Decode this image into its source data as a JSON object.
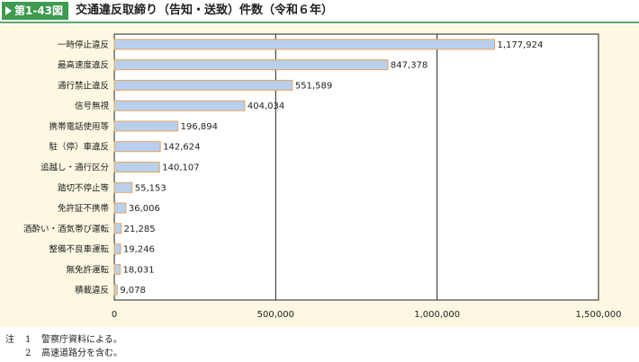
{
  "header": {
    "figure_number": "第1-43図",
    "title": "交通違反取締り（告知・送致）件数（令和６年）"
  },
  "chart_data": {
    "type": "bar",
    "orientation": "horizontal",
    "categories": [
      "一時停止違反",
      "最高速度違反",
      "通行禁止違反",
      "信号無視",
      "携帯電話使用等",
      "駐（停）車違反",
      "追越し・通行区分",
      "踏切不停止等",
      "免許証不携帯",
      "酒酔い・酒気帯び運転",
      "整備不良車運転",
      "無免許運転",
      "積載違反"
    ],
    "values": [
      1177924,
      847378,
      551589,
      404034,
      196894,
      142624,
      140107,
      55153,
      36006,
      21285,
      19246,
      18031,
      9078
    ],
    "value_labels": [
      "1,177,924",
      "847,378",
      "551,589",
      "404,034",
      "196,894",
      "142,624",
      "140,107",
      "55,153",
      "36,006",
      "21,285",
      "19,246",
      "18,031",
      "9,078"
    ],
    "x_ticks": [
      0,
      500000,
      1000000,
      1500000
    ],
    "x_tick_labels": [
      "0",
      "500,000",
      "1,000,000",
      "1,500,000"
    ],
    "xlim": [
      0,
      1500000
    ],
    "grid": "vertical",
    "title": "",
    "xlabel": "",
    "ylabel": "",
    "colors": {
      "bar_fill": "#b8d0ee",
      "bar_stroke": "#e8a35b",
      "plot_bg": "#ffffff",
      "panel_bg": "#fdf8e2",
      "grid": "#222222"
    }
  },
  "notes": {
    "lead": "注",
    "items": [
      {
        "num": "1",
        "text": "警察庁資料による。"
      },
      {
        "num": "2",
        "text": "高速道路分を含む。"
      }
    ]
  }
}
